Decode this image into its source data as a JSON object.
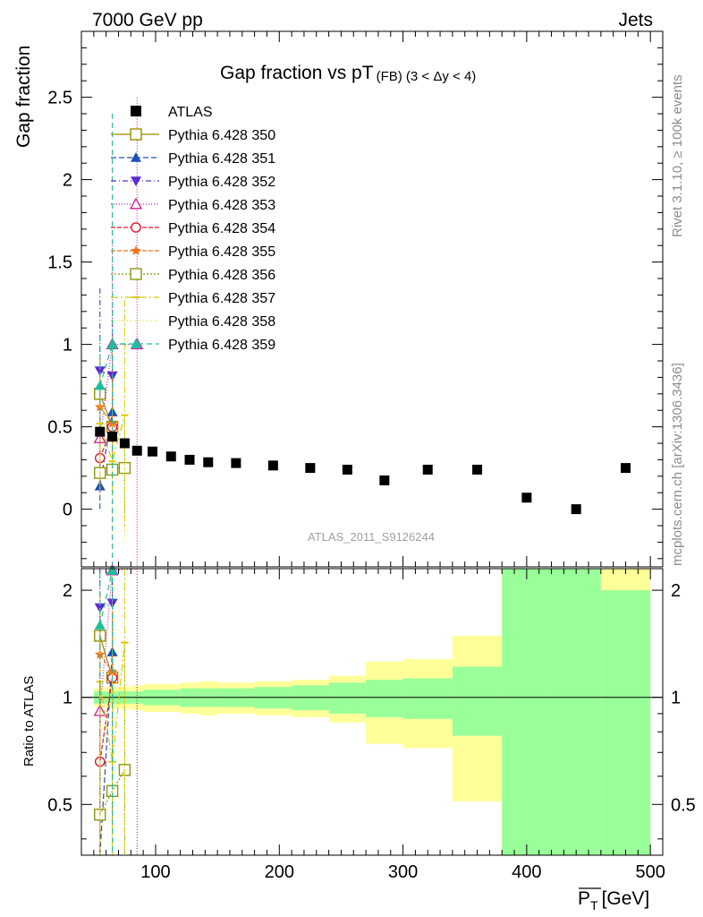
{
  "header": {
    "left": "7000 GeV pp",
    "right": "Jets",
    "title_main": "Gap fraction vs pT",
    "title_sub": "(FB) (3 < Δy < 4)",
    "side_top": "Rivet 3.1.10, ≥ 100k events",
    "side_bottom": "mcplots.cern.ch [arXiv:1306.3436]",
    "watermark": "ATLAS_2011_S9126244"
  },
  "axes": {
    "ylabel_top": "Gap fraction",
    "ylabel_bottom": "Ratio to ATLAS",
    "xlabel": "P_T [GeV]",
    "xlabel_main": "P",
    "xlabel_sub": "T",
    "xlabel_unit": "[GeV]",
    "x_ticks": [
      "100",
      "200",
      "300",
      "400",
      "500"
    ],
    "y_ticks_top": [
      "0",
      "0.5",
      "1",
      "1.5",
      "2",
      "2.5"
    ],
    "y_ticks_bottom": [
      "0.5",
      "1",
      "2"
    ]
  },
  "chart_data": {
    "type": "scatter",
    "xlim": [
      40,
      510
    ],
    "ylim_top": [
      -0.35,
      2.9
    ],
    "ylim_ratio": [
      0.36,
      2.3
    ],
    "ratio_scale": "log",
    "legend_position": "top-left",
    "data": {
      "name": "ATLAS",
      "color": "#000000",
      "bins": [
        {
          "lo": 50,
          "hi": 60,
          "y": 0.47
        },
        {
          "lo": 60,
          "hi": 70,
          "y": 0.44
        },
        {
          "lo": 70,
          "hi": 80,
          "y": 0.4
        },
        {
          "lo": 80,
          "hi": 90,
          "y": 0.355
        },
        {
          "lo": 90,
          "hi": 105,
          "y": 0.35
        },
        {
          "lo": 105,
          "hi": 120,
          "y": 0.32
        },
        {
          "lo": 120,
          "hi": 135,
          "y": 0.3
        },
        {
          "lo": 135,
          "hi": 150,
          "y": 0.285
        },
        {
          "lo": 150,
          "hi": 180,
          "y": 0.28
        },
        {
          "lo": 180,
          "hi": 210,
          "y": 0.265
        },
        {
          "lo": 210,
          "hi": 240,
          "y": 0.25
        },
        {
          "lo": 240,
          "hi": 270,
          "y": 0.24
        },
        {
          "lo": 270,
          "hi": 300,
          "y": 0.175
        },
        {
          "lo": 300,
          "hi": 340,
          "y": 0.24
        },
        {
          "lo": 340,
          "hi": 380,
          "y": 0.24
        },
        {
          "lo": 380,
          "hi": 420,
          "y": 0.07
        },
        {
          "lo": 420,
          "hi": 460,
          "y": 0.0
        },
        {
          "lo": 460,
          "hi": 500,
          "y": 0.25
        }
      ],
      "band_stat": [
        0.04,
        0.04,
        0.04,
        0.04,
        0.05,
        0.05,
        0.06,
        0.06,
        0.06,
        0.07,
        0.08,
        0.1,
        0.12,
        0.13,
        0.22,
        1.3,
        2.0,
        1.0
      ],
      "band_total": [
        0.06,
        0.07,
        0.07,
        0.08,
        0.09,
        0.09,
        0.1,
        0.11,
        0.1,
        0.11,
        0.12,
        0.15,
        0.26,
        0.28,
        0.49,
        1.5,
        2.0,
        1.4
      ]
    },
    "series": [
      {
        "name": "Pythia 6.428 350",
        "color": "#998d00",
        "marker": "open-square",
        "dash": "solid",
        "points": [
          [
            55,
            0.7,
            0.1
          ],
          [
            65,
            0.5,
            0.1
          ]
        ]
      },
      {
        "name": "Pythia 6.428 351",
        "color": "#1a52b3",
        "marker": "filled-triangle-up",
        "dash": "6,3",
        "points": [
          [
            55,
            0.14,
            0.14
          ],
          [
            65,
            0.59,
            0.35
          ]
        ]
      },
      {
        "name": "Pythia 6.428 352",
        "color": "#5a2bd6",
        "marker": "filled-triangle-down",
        "dash": "6,3,1,3",
        "points": [
          [
            55,
            0.84,
            0.5
          ],
          [
            65,
            0.81,
            0.4
          ]
        ]
      },
      {
        "name": "Pythia 6.428 353",
        "color": "#cc1d8f",
        "marker": "open-triangle-up",
        "dash": "1,2",
        "points": [
          [
            55,
            0.43,
            0.3
          ],
          [
            65,
            1.0,
            0.6
          ],
          [
            85,
            1.0,
            1.5
          ]
        ]
      },
      {
        "name": "Pythia 6.428 354",
        "color": "#e6142d",
        "marker": "open-circle",
        "dash": "5,2",
        "points": [
          [
            55,
            0.31,
            0.2
          ],
          [
            65,
            0.5,
            0.3
          ]
        ]
      },
      {
        "name": "Pythia 6.428 355",
        "color": "#f27219",
        "marker": "filled-star",
        "dash": "5,2",
        "points": [
          [
            55,
            0.62,
            0.2
          ],
          [
            65,
            0.52,
            0.25
          ]
        ]
      },
      {
        "name": "Pythia 6.428 356",
        "color": "#8a9616",
        "marker": "open-square",
        "dash": "2,2",
        "points": [
          [
            55,
            0.22,
            0.15
          ],
          [
            65,
            0.24,
            0.15
          ],
          [
            75,
            0.25,
            0.3
          ]
        ]
      },
      {
        "name": "Pythia 6.428 357",
        "color": "#d9c814",
        "marker": "dash-tick",
        "dash": "8,3,2,3",
        "points": [
          [
            55,
            0.52,
            0.4
          ],
          [
            65,
            0.29,
            0.2
          ],
          [
            75,
            0.57,
            0.7
          ]
        ]
      },
      {
        "name": "Pythia 6.428 358",
        "color": "#dce62e",
        "marker": "none",
        "dash": "1,2",
        "points": [
          [
            55,
            0.45,
            0.35
          ],
          [
            65,
            0.45,
            0.6
          ],
          [
            75,
            0.5,
            0.7
          ]
        ]
      },
      {
        "name": "Pythia 6.428 359",
        "color": "#1bbf9e",
        "marker": "filled-triangle-up",
        "dash": "6,4",
        "points": [
          [
            55,
            0.75,
            0.3
          ],
          [
            65,
            1.0,
            1.4
          ]
        ]
      }
    ]
  }
}
